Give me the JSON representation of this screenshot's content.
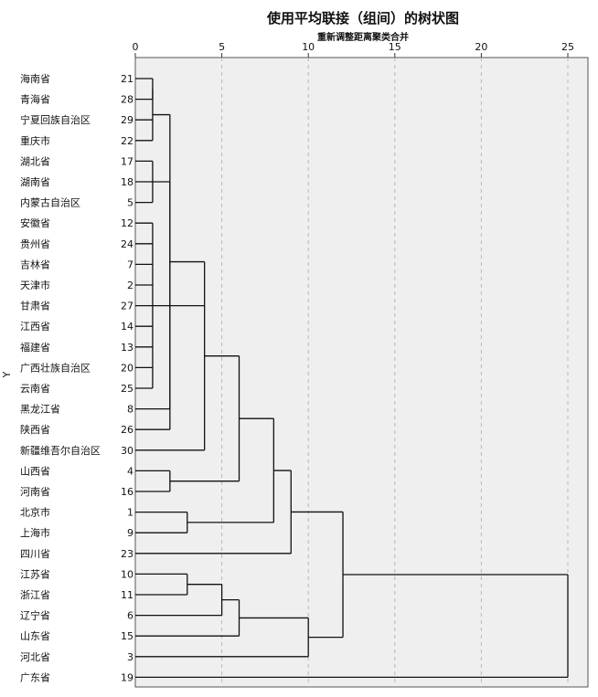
{
  "chart_data": {
    "type": "dendrogram",
    "title": "使用平均联接（组间）的树状图",
    "subtitle": "重新调整距离聚类合并",
    "ylabel": "Y",
    "x_ticks": [
      0,
      5,
      10,
      15,
      20,
      25
    ],
    "xlim": [
      0,
      25
    ],
    "grid": "dashed vertical at ticks",
    "background": "#efefef",
    "line_color": "#111111",
    "leaves": [
      {
        "label": "海南省",
        "case": "21"
      },
      {
        "label": "青海省",
        "case": "28"
      },
      {
        "label": "宁夏回族自治区",
        "case": "29"
      },
      {
        "label": "重庆市",
        "case": "22"
      },
      {
        "label": "湖北省",
        "case": "17"
      },
      {
        "label": "湖南省",
        "case": "18"
      },
      {
        "label": "内蒙古自治区",
        "case": "5"
      },
      {
        "label": "安徽省",
        "case": "12"
      },
      {
        "label": "贵州省",
        "case": "24"
      },
      {
        "label": "吉林省",
        "case": "7"
      },
      {
        "label": "天津市",
        "case": "2"
      },
      {
        "label": "甘肃省",
        "case": "27"
      },
      {
        "label": "江西省",
        "case": "14"
      },
      {
        "label": "福建省",
        "case": "13"
      },
      {
        "label": "广西壮族自治区",
        "case": "20"
      },
      {
        "label": "云南省",
        "case": "25"
      },
      {
        "label": "黑龙江省",
        "case": "8"
      },
      {
        "label": "陕西省",
        "case": "26"
      },
      {
        "label": "新疆维吾尔自治区",
        "case": "30"
      },
      {
        "label": "山西省",
        "case": "4"
      },
      {
        "label": "河南省",
        "case": "16"
      },
      {
        "label": "北京市",
        "case": "1"
      },
      {
        "label": "上海市",
        "case": "9"
      },
      {
        "label": "四川省",
        "case": "23"
      },
      {
        "label": "江苏省",
        "case": "10"
      },
      {
        "label": "浙江省",
        "case": "11"
      },
      {
        "label": "辽宁省",
        "case": "6"
      },
      {
        "label": "山东省",
        "case": "15"
      },
      {
        "label": "河北省",
        "case": "3"
      },
      {
        "label": "广东省",
        "case": "19"
      }
    ],
    "merges": [
      {
        "id": "A",
        "children": [
          "L0",
          "L1"
        ],
        "height": 1.0
      },
      {
        "id": "B",
        "children": [
          "A",
          "L2",
          "L3"
        ],
        "height": 1.0
      },
      {
        "id": "C",
        "children": [
          "L4",
          "L5",
          "L6"
        ],
        "height": 1.0
      },
      {
        "id": "D",
        "children": [
          "L7",
          "L8",
          "L9",
          "L10",
          "L11",
          "L12",
          "L13",
          "L14",
          "L15"
        ],
        "height": 1.0
      },
      {
        "id": "E",
        "children": [
          "L16"
        ],
        "height": 1.0
      },
      {
        "id": "F",
        "children": [
          "L17"
        ],
        "height": 1.0
      },
      {
        "id": "G",
        "children": [
          "B",
          "D",
          "E"
        ],
        "height": 2.0
      },
      {
        "id": "H",
        "children": [
          "C",
          "F"
        ],
        "height": 2.0
      },
      {
        "id": "I",
        "children": [
          "G",
          "H",
          "L18"
        ],
        "height": 4.0
      },
      {
        "id": "J",
        "children": [
          "L19",
          "L20"
        ],
        "height": 2.0
      },
      {
        "id": "K",
        "children": [
          "L21",
          "L22"
        ],
        "height": 3.0
      },
      {
        "id": "M",
        "children": [
          "I",
          "J"
        ],
        "height": 6.0
      },
      {
        "id": "N",
        "children": [
          "M",
          "K"
        ],
        "height": 8.0
      },
      {
        "id": "O",
        "children": [
          "N",
          "L23"
        ],
        "height": 9.0
      },
      {
        "id": "P",
        "children": [
          "L24",
          "L25"
        ],
        "height": 3.0
      },
      {
        "id": "Q",
        "children": [
          "P",
          "L26"
        ],
        "height": 5.0
      },
      {
        "id": "R",
        "children": [
          "Q",
          "L27"
        ],
        "height": 6.0
      },
      {
        "id": "S",
        "children": [
          "R",
          "L28"
        ],
        "height": 10.0
      },
      {
        "id": "T",
        "children": [
          "O",
          "S"
        ],
        "height": 12.0
      },
      {
        "id": "U",
        "children": [
          "T",
          "L29"
        ],
        "height": 25.0
      }
    ]
  }
}
